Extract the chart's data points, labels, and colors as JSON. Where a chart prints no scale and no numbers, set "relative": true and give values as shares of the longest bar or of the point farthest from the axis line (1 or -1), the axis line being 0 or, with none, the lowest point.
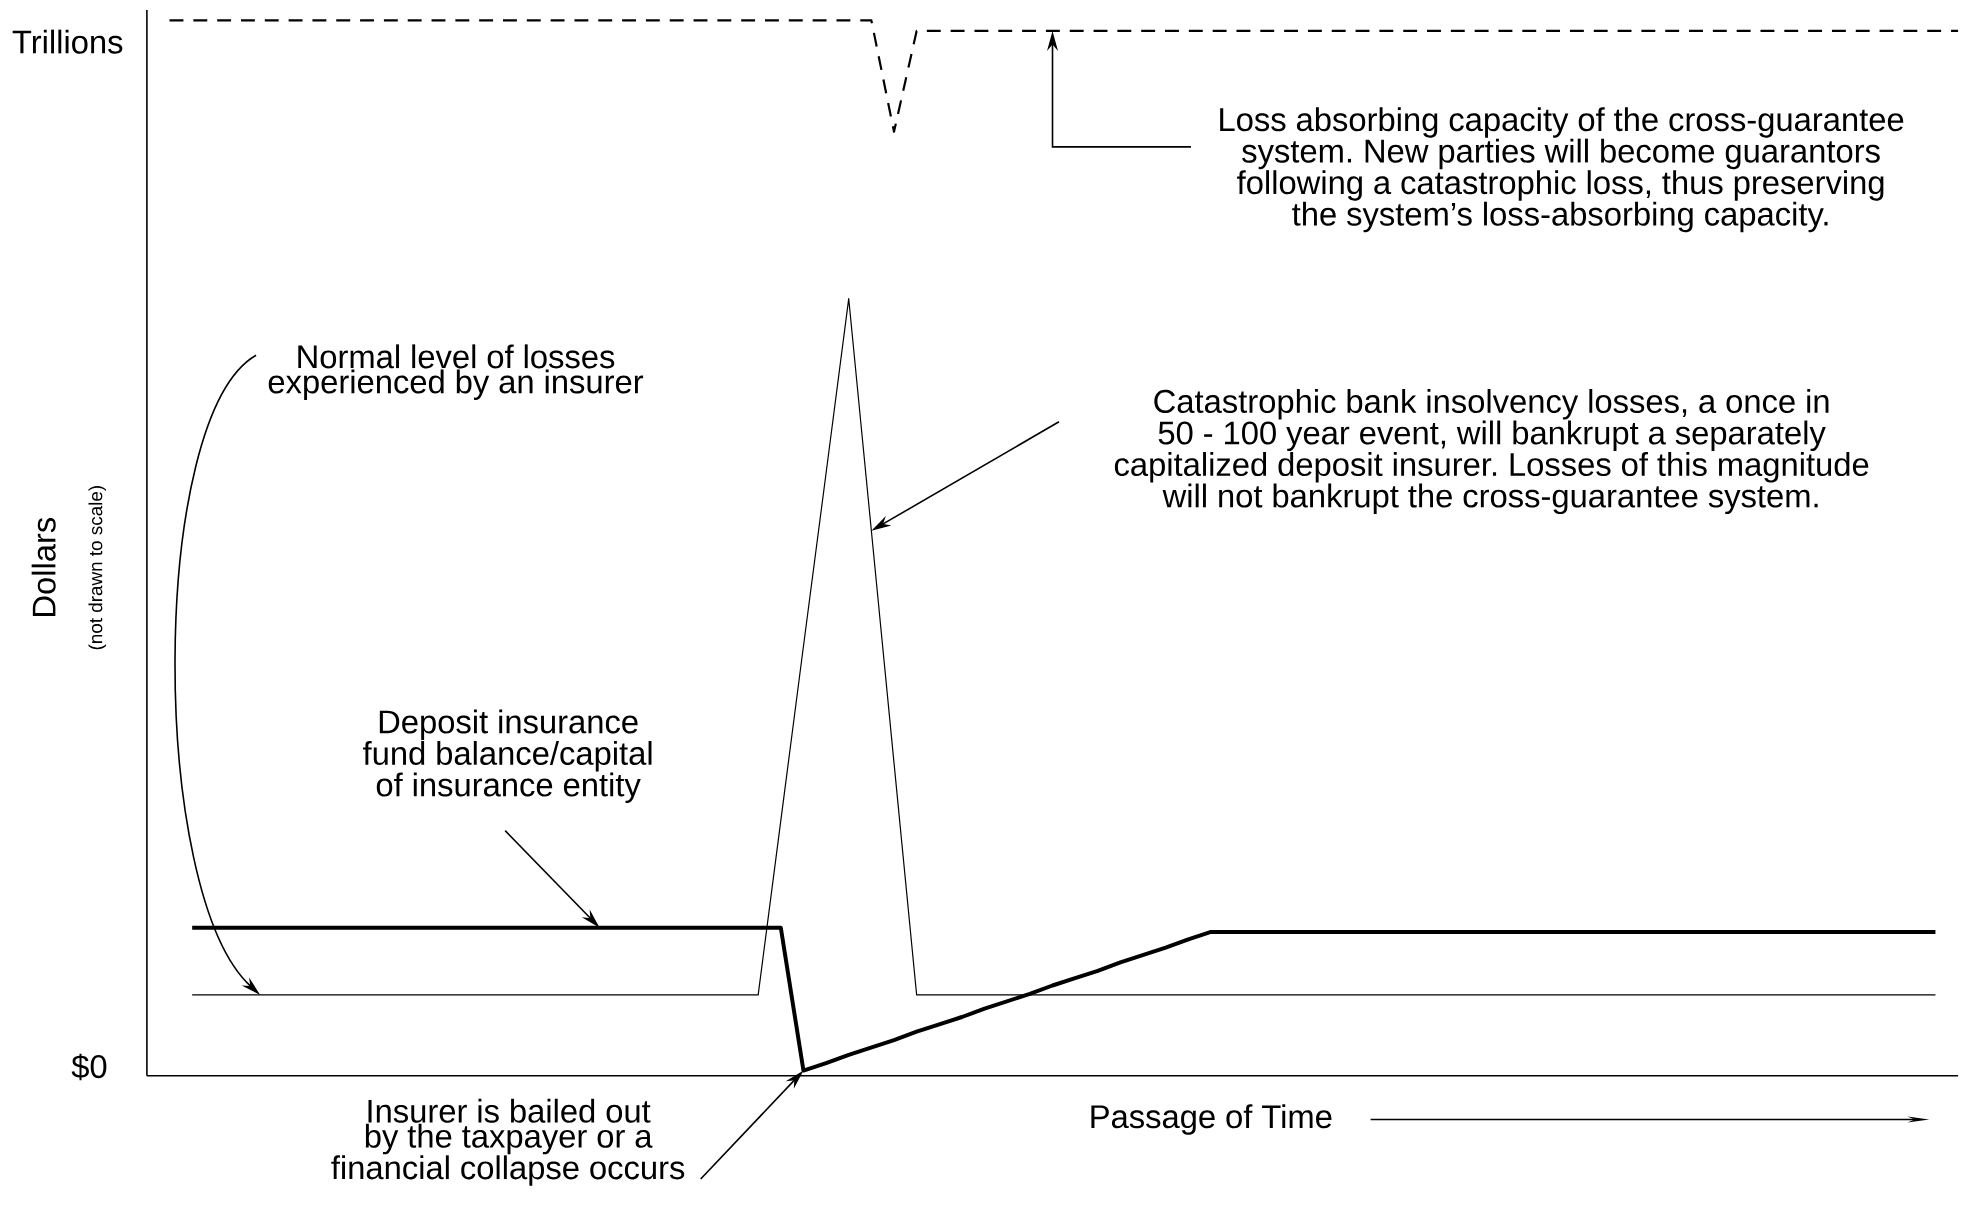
{
  "chart_data": {
    "type": "line",
    "relative": true,
    "ylabel": "Dollars",
    "xlabel": "Passage of Time",
    "categories": [
      null,
      null,
      null,
      null,
      null,
      null,
      null,
      null,
      null,
      null,
      null,
      null,
      null,
      null,
      null,
      null,
      null,
      null,
      null,
      null,
      null,
      null,
      null,
      null,
      null,
      null,
      null,
      null,
      null,
      null,
      null,
      null,
      null,
      null,
      null,
      null,
      null,
      null,
      null,
      null,
      null,
      null,
      null,
      null,
      null,
      null,
      null,
      null,
      null,
      null,
      null,
      null,
      null,
      null,
      null,
      null,
      null,
      null,
      null,
      null,
      null,
      null,
      null,
      null,
      null,
      null,
      null,
      null,
      null,
      null,
      null,
      null,
      null,
      null,
      null,
      null,
      null,
      null,
      null,
      null,
      null
    ],
    "series": [
      {
        "color": "#000000",
        "line_style": "dashed",
        "values": [
          null,
          1,
          1,
          1,
          1,
          1,
          1,
          1,
          1,
          1,
          1,
          1,
          1,
          1,
          1,
          1,
          1,
          1,
          1,
          1,
          1,
          1,
          1,
          1,
          1,
          1,
          1,
          1,
          1,
          1,
          1,
          1,
          1,
          0.894,
          0.99,
          0.99,
          0.99,
          0.99,
          0.99,
          0.99,
          0.99,
          0.99,
          0.99,
          0.99,
          0.99,
          0.99,
          0.99,
          0.99,
          0.99,
          0.99,
          0.99,
          0.99,
          0.99,
          0.99,
          0.99,
          0.99,
          0.99,
          0.99,
          0.99,
          0.99,
          0.99,
          0.99,
          0.99,
          0.99,
          0.99,
          0.99,
          0.99,
          0.99,
          0.99,
          0.99,
          0.99,
          0.99,
          0.99,
          0.99,
          0.99,
          0.99,
          0.99,
          0.99,
          0.99,
          0.99,
          0.99
        ]
      },
      {
        "color": "#000000",
        "line_style": "solid",
        "values": [
          null,
          null,
          0.072,
          0.072,
          0.072,
          0.072,
          0.072,
          0.072,
          0.072,
          0.072,
          0.072,
          0.072,
          0.072,
          0.072,
          0.072,
          0.072,
          0.072,
          0.072,
          0.072,
          0.072,
          0.072,
          0.072,
          0.072,
          0.072,
          0.072,
          0.072,
          0.072,
          0.072,
          0.238,
          0.404,
          0.569,
          0.735,
          0.514,
          0.293,
          0.072,
          0.072,
          0.072,
          0.072,
          0.072,
          0.072,
          0.072,
          0.072,
          0.072,
          0.072,
          0.072,
          0.072,
          0.072,
          0.072,
          0.072,
          0.072,
          0.072,
          0.072,
          0.072,
          0.072,
          0.072,
          0.072,
          0.072,
          0.072,
          0.072,
          0.072,
          0.072,
          0.072,
          0.072,
          0.072,
          0.072,
          0.072,
          0.072,
          0.072,
          0.072,
          0.072,
          0.072,
          0.072,
          0.072,
          0.072,
          0.072,
          0.072,
          0.072,
          0.072,
          0.072,
          0.072,
          null
        ]
      },
      {
        "color": "#000000",
        "line_style": "solid",
        "values": [
          null,
          null,
          0.136,
          0.136,
          0.136,
          0.136,
          0.136,
          0.136,
          0.136,
          0.136,
          0.136,
          0.136,
          0.136,
          0.136,
          0.136,
          0.136,
          0.136,
          0.136,
          0.136,
          0.136,
          0.136,
          0.136,
          0.136,
          0.136,
          0.136,
          0.136,
          0.136,
          0.136,
          0.136,
          0,
          0.007,
          0.015,
          0.022,
          0.029,
          0.037,
          0.044,
          0.051,
          0.059,
          0.066,
          0.073,
          0.081,
          0.088,
          0.095,
          0.103,
          0.11,
          0.117,
          0.125,
          0.132,
          0.132,
          0.132,
          0.132,
          0.132,
          0.132,
          0.132,
          0.132,
          0.132,
          0.132,
          0.132,
          0.132,
          0.132,
          0.132,
          0.132,
          0.132,
          0.132,
          0.132,
          0.132,
          0.132,
          0.132,
          0.132,
          0.132,
          0.132,
          0.132,
          0.132,
          0.132,
          0.132,
          0.132,
          0.132,
          0.132,
          0.132,
          0.132,
          null
        ]
      }
    ],
    "annotations": [
      "Trillions",
      "$0",
      "(not drawn to scale)",
      "Loss absorbing capacity of the cross-guarantee system. New parties will become guarantors following a catastrophic loss, thus preserving the system’s loss-absorbing capacity.",
      "Normal level of losses experienced by an insurer",
      "Catastrophic bank insolvency losses, a once in 50 - 100 year event, will bankrupt a separately capitalized deposit insurer. Losses of this magnitude will not bankrupt the cross-guarantee system.",
      "Deposit insurance fund balance/capital of insurance entity",
      "Insurer is bailed out by the taxpayer or a financial collapse occurs"
    ]
  }
}
